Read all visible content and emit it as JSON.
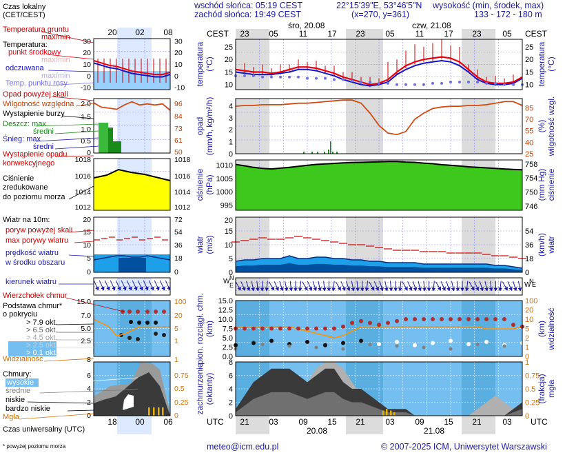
{
  "header": {
    "sunrise": "wschód słońca: 05:19 CEST",
    "sunset": "zachód słońca: 19:49 CEST",
    "coords": "22°15'39\"E, 53°46'5\"N",
    "grid": "(x=270,  y=361)",
    "height_label": "wysokość (min, środek, max)",
    "height_values": "133 - 172 - 180 m"
  },
  "time": {
    "cest": "CEST",
    "utc": "UTC",
    "day1": "śro, 20.08",
    "day2": "czw, 21.08",
    "top_hours": [
      "23",
      "05",
      "11",
      "17",
      "23",
      "05",
      "11",
      "17",
      "23",
      "05"
    ],
    "bottom_hours": [
      "21",
      "03",
      "09",
      "15",
      "21",
      "03",
      "09",
      "15",
      "21",
      "03"
    ],
    "bottom_dates": [
      "20.08",
      "21.08"
    ],
    "left_top_hours": [
      "20",
      "02",
      "08"
    ],
    "left_bottom_hours": [
      "18",
      "00",
      "06"
    ]
  },
  "legend": {
    "local_time": "Czas lokalny",
    "local_time_sub": "(CET/CEST)",
    "ground_temp": "Temperatura gruntu",
    "ground_temp_sub": "max/min",
    "temperature": "Temperatura:",
    "mid_point": "punkt środkowy",
    "maxmin": "max/min",
    "feels": "odczuwana",
    "feels_sub": "max/min",
    "dew": "Temp. punktu rosy",
    "precip_thr": "Opad powyżej skali",
    "humidity": "Wilgotność względna",
    "storm": "Wystąpienie burzy",
    "rain_max": "Deszcz: max",
    "rain_mean": "średni",
    "snow_max": "Śnieg:    max",
    "snow_mean": "średni",
    "conv": "Wystąpienie opadu",
    "conv2": "konwekcyjnego",
    "pressure": "Ciśnienie",
    "pressure2": "zredukowane",
    "pressure3": "do poziomu morza",
    "wind": "Wiatr na 10m:",
    "gust_thr": "poryw powyżej skali",
    "gust": "max porywy wiatru",
    "wind_mean": "prędkość wiatru",
    "wind_mean2": "w środku obszaru",
    "wind_dir": "kierunek wiatru",
    "cloud_top": "Wierzchołek chmur",
    "cloud_base": "Podstawa chmur*",
    "cloud_base2": "o pokryciu",
    "okt": [
      "> 7.9 okt.",
      "> 6.5 okt.",
      "> 4.5 okt.",
      "> 2.5 okt.",
      "> 0.1 okt."
    ],
    "visibility": "Widzialność",
    "clouds": "Chmury:",
    "high": "wysokie",
    "mid": "średnie",
    "low": "niskie",
    "very_low": "bardzo niskie",
    "fog": "Mgła",
    "utc_label": "Czas uniwersalny (UTC)",
    "footnote": "* powyżej poziomu morza"
  },
  "axis_titles": {
    "temp_l": "temperatura",
    "temp_l2": "(°C)",
    "temp_r": "temperatura",
    "temp_r2": "(°C)",
    "prec_l": "opad",
    "prec_l2": "(mm/h, kg/m²/h)",
    "prec_r": "wilgotność wzgl.",
    "prec_r2": "(%)",
    "pres_l": "ciśnienie",
    "pres_l2": "(hPa)",
    "pres_r": "ciśnienie",
    "pres_r2": "(mm Hg)",
    "wind_l": "wiatr",
    "wind_l2": "(m/s)",
    "wind_r": "wiatr",
    "wind_r2": "(km/h)",
    "cb_l": "pion. rozciągł. chm.",
    "cb_l2": "(km)",
    "cb_r": "widzialność",
    "cb_r2": "(km)",
    "cl_l": "zachmurzenie",
    "cl_l2": "(oktanty)",
    "cl_r": "mgła",
    "cl_r2": "(frakcja)"
  },
  "footer": {
    "email": "meteo@icm.edu.pl",
    "copyright": "© 2007-2025 ICM, Uniwersytet Warszawski"
  },
  "colors": {
    "night": "#dcdcdc",
    "grid": "#6a6aff",
    "temp": "#e8000e",
    "dew": "#7070e0",
    "feels": "#1414c0",
    "humid": "#d24a10",
    "press_fill": "#3ec81e",
    "press_left": "#ffff00",
    "wind_fill": "#1ea0e8",
    "wind_dark": "#0050a0",
    "gust": "#d00000",
    "sky": "#74bff0",
    "vis": "#ff9000",
    "cloud_dark": "#404040",
    "cloud_mid": "#a0a0a0"
  },
  "chart_data": [
    {
      "type": "line",
      "name_key": "temp",
      "y_ticks_l": [
        10,
        15,
        20,
        25
      ],
      "y_ticks_r": [
        10,
        15,
        20,
        25
      ],
      "ylim": [
        8,
        28
      ],
      "series": [
        {
          "name": "punkt środkowy",
          "values": [
            16,
            15.5,
            15,
            15,
            14.5,
            15,
            16,
            17,
            17,
            16.5,
            15.5,
            14.5,
            13,
            12,
            11,
            10,
            10.5,
            12,
            15,
            17.5,
            19,
            20,
            20.5,
            21,
            20.5,
            19,
            16,
            13,
            11,
            10.5,
            10.5,
            11,
            13
          ]
        },
        {
          "name": "odczuwana",
          "values": [
            15,
            14.5,
            14,
            14,
            14,
            14.5,
            15,
            16,
            16,
            15.5,
            14.5,
            13.5,
            12,
            11,
            10,
            9.5,
            10,
            11,
            14,
            16,
            17.5,
            18.5,
            19,
            19.5,
            19,
            17.5,
            15,
            12,
            10.5,
            10,
            10,
            10.5,
            12.5
          ]
        },
        {
          "name": "Temp. punktu rosy",
          "values": [
            13.5,
            13.5,
            13.5,
            13,
            13,
            13,
            13,
            13,
            12.5,
            12.5,
            12.5,
            12,
            12,
            11.5,
            11,
            11,
            10.5,
            10.5,
            10,
            10,
            10,
            10,
            10.5,
            10.5,
            11,
            11,
            11,
            11,
            10.5,
            10.5,
            10,
            10,
            10
          ]
        }
      ],
      "x_range": [
        0,
        32
      ]
    },
    {
      "type": "line",
      "name_key": "humidity",
      "y_ticks_l": [
        0,
        0.5,
        1,
        1.5,
        2,
        2.5,
        3,
        3.5,
        4,
        4.5,
        5
      ],
      "y_ticks_r": [
        25,
        40,
        55,
        70,
        85
      ],
      "series": [
        {
          "name": "Wilgotność względna",
          "values": [
            87,
            88,
            88,
            89,
            89,
            89,
            90,
            91,
            91,
            92,
            93,
            94,
            95,
            95,
            91,
            78,
            62,
            52,
            50,
            54,
            70,
            78,
            84,
            86,
            87,
            87,
            88,
            88,
            89,
            91,
            93,
            93,
            88
          ]
        }
      ]
    },
    {
      "type": "area",
      "name_key": "pressure",
      "y_ticks_l": [
        995,
        1000,
        1005,
        1010
      ],
      "y_ticks_r": [
        746,
        750,
        754,
        758
      ],
      "ylim": [
        993,
        1012
      ],
      "series": [
        {
          "name": "Ciśnienie",
          "values": [
            1010.3,
            1009.8,
            1009.2,
            1008.8,
            1008.6,
            1008.9,
            1009.2,
            1009.6,
            1010.0,
            1010.3,
            1010.5,
            1010.7,
            1010.9,
            1011.0,
            1011.1,
            1011.2,
            1011.3,
            1011.4,
            1011.4,
            1011.2,
            1011.1,
            1010.8,
            1010.6,
            1010.2,
            1010.0,
            1009.7,
            1009.4,
            1009.2,
            1009.0,
            1008.8,
            1008.6,
            1008.4,
            1008.3
          ]
        }
      ]
    },
    {
      "type": "area",
      "name_key": "wind",
      "y_ticks_l": [
        0,
        5,
        10,
        15
      ],
      "y_ticks_r": [
        0,
        18,
        36,
        54
      ],
      "ylim": [
        0,
        20
      ],
      "series": [
        {
          "name": "prędkość wiatru",
          "values": [
            4,
            4.5,
            4.5,
            5,
            5,
            5,
            6,
            5,
            5,
            5.5,
            5.5,
            5,
            5,
            4.5,
            4.5,
            4,
            4,
            3.5,
            3.5,
            3.5,
            3.5,
            3,
            3,
            3,
            3,
            3,
            3,
            3,
            3,
            2.5,
            2.5,
            2,
            1.5
          ]
        },
        {
          "name": "max porywy wiatru",
          "values": [
            11,
            11.5,
            12,
            12.5,
            12,
            12,
            12.5,
            13,
            12.5,
            12,
            11.5,
            11,
            10.5,
            10,
            10,
            9.5,
            9,
            8.5,
            8,
            8,
            8,
            7.5,
            7.5,
            7.5,
            7,
            7,
            7,
            7,
            6.5,
            6,
            6,
            5.5,
            5
          ]
        }
      ]
    },
    {
      "type": "scatter",
      "name_key": "cloudbase",
      "y_ticks_l": [
        0,
        2.5,
        5,
        7.5,
        10,
        12.5,
        15
      ],
      "y_ticks_r": [
        0,
        1,
        2,
        5,
        10,
        20,
        100
      ],
      "series": [
        {
          "name": "Wierzchołek chmur",
          "values": [
            7.5,
            7.5,
            7.5,
            7.5,
            7.5,
            7.5,
            7.5,
            7.5,
            7.5,
            7.5,
            7.5,
            7.5,
            8,
            9,
            9.5,
            9,
            8.5,
            9,
            9.5,
            10,
            10,
            10,
            10,
            10,
            10,
            10,
            10,
            10,
            10,
            10,
            10,
            8.5,
            8
          ]
        },
        {
          "name": "Widzialność",
          "values": [
            10,
            10,
            10,
            10,
            10,
            10,
            10,
            9,
            8,
            7,
            6,
            5,
            6,
            8,
            10,
            10,
            10,
            10,
            10,
            10,
            10,
            10,
            10,
            10,
            10,
            10,
            10,
            10,
            9,
            9,
            9,
            9,
            10
          ]
        }
      ]
    },
    {
      "type": "area",
      "name_key": "clouds",
      "y_ticks_l": [
        0,
        2,
        4,
        6,
        8
      ],
      "y_ticks_r": [
        0,
        0.25,
        0.5,
        0.75,
        1
      ],
      "ylim": [
        0,
        8
      ],
      "series": [
        {
          "name": "wysokie",
          "values": [
            0,
            0,
            0,
            0,
            1,
            2,
            3,
            4,
            5,
            7,
            8,
            8,
            7,
            5,
            3,
            2,
            1,
            0,
            0,
            0,
            0,
            0,
            0,
            0,
            0,
            0,
            0,
            1,
            2,
            3,
            2,
            1,
            0
          ]
        },
        {
          "name": "niskie",
          "values": [
            1,
            3,
            5,
            6,
            7,
            7,
            7,
            6,
            5,
            6,
            7,
            7,
            5,
            4,
            4,
            3,
            2,
            1,
            1,
            1,
            0,
            0,
            0,
            0,
            0,
            0,
            0,
            0,
            0,
            0,
            0,
            1,
            2
          ]
        }
      ]
    }
  ]
}
